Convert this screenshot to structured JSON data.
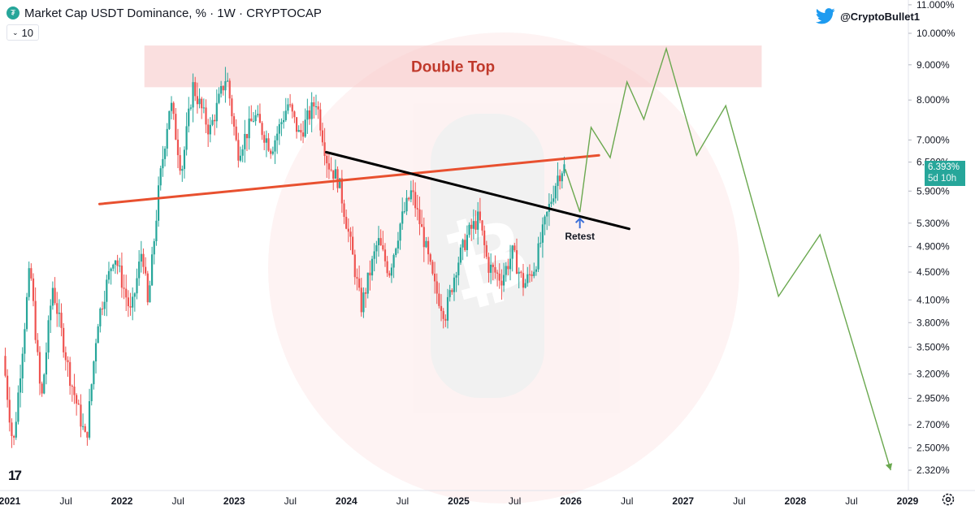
{
  "header": {
    "title": "Market Cap USDT Dominance, % · 1W · CRYPTOCAP",
    "interval_value": "10",
    "handle": "@CryptoBullet1",
    "tv_mark": "17"
  },
  "current_price": {
    "value": "6.393%",
    "countdown": "5d 10h"
  },
  "colors": {
    "up": "#26a69a",
    "down": "#ef5350",
    "resistance": "#e8502f",
    "trend": "#000000",
    "projection": "#6aa84f",
    "zone": "#f7c9c9",
    "retest_arrow": "#3b6fd8"
  },
  "annotations": {
    "double_top": "Double Top",
    "retest": "Retest"
  },
  "chart_data": {
    "type": "candlestick",
    "title": "Market Cap USDT Dominance, % · 1W · CRYPTOCAP",
    "y_scale": "log",
    "y_ticks": [
      2.32,
      2.5,
      2.7,
      2.95,
      3.2,
      3.5,
      3.8,
      4.1,
      4.5,
      4.9,
      5.3,
      5.9,
      6.5,
      7.0,
      8.0,
      9.0,
      10.0,
      11.0
    ],
    "y_tick_labels": [
      "2.320%",
      "2.500%",
      "2.700%",
      "2.950%",
      "3.200%",
      "3.500%",
      "3.800%",
      "4.100%",
      "4.500%",
      "4.900%",
      "5.300%",
      "5.900%",
      "6.500%",
      "7.000%",
      "8.000%",
      "9.000%",
      "10.000%",
      "11.000%"
    ],
    "x_ticks": [
      {
        "t": 2021.0,
        "label": "2021"
      },
      {
        "t": 2021.5,
        "label": "Jul"
      },
      {
        "t": 2022.0,
        "label": "2022"
      },
      {
        "t": 2022.5,
        "label": "Jul"
      },
      {
        "t": 2023.0,
        "label": "2023"
      },
      {
        "t": 2023.5,
        "label": "Jul"
      },
      {
        "t": 2024.0,
        "label": "2024"
      },
      {
        "t": 2024.5,
        "label": "Jul"
      },
      {
        "t": 2025.0,
        "label": "2025"
      },
      {
        "t": 2025.5,
        "label": "Jul"
      },
      {
        "t": 2026.0,
        "label": "2026"
      },
      {
        "t": 2026.5,
        "label": "Jul"
      },
      {
        "t": 2027.0,
        "label": "2027"
      },
      {
        "t": 2027.5,
        "label": "Jul"
      },
      {
        "t": 2028.0,
        "label": "2028"
      },
      {
        "t": 2028.5,
        "label": "Jul"
      },
      {
        "t": 2029.0,
        "label": "2029"
      }
    ],
    "price_path": [
      [
        2020.96,
        3.4
      ],
      [
        2021.05,
        2.5
      ],
      [
        2021.2,
        4.6
      ],
      [
        2021.3,
        2.9
      ],
      [
        2021.4,
        4.3
      ],
      [
        2021.55,
        3.2
      ],
      [
        2021.7,
        2.55
      ],
      [
        2021.8,
        3.8
      ],
      [
        2021.95,
        4.8
      ],
      [
        2022.1,
        3.9
      ],
      [
        2022.2,
        4.9
      ],
      [
        2022.25,
        4.0
      ],
      [
        2022.35,
        6.0
      ],
      [
        2022.45,
        8.0
      ],
      [
        2022.55,
        6.3
      ],
      [
        2022.65,
        8.4
      ],
      [
        2022.8,
        7.2
      ],
      [
        2022.95,
        8.7
      ],
      [
        2023.05,
        6.7
      ],
      [
        2023.2,
        7.6
      ],
      [
        2023.35,
        6.8
      ],
      [
        2023.5,
        7.9
      ],
      [
        2023.6,
        7.1
      ],
      [
        2023.75,
        8.0
      ],
      [
        2023.85,
        6.5
      ],
      [
        2023.95,
        6.1
      ],
      [
        2024.05,
        5.0
      ],
      [
        2024.15,
        4.0
      ],
      [
        2024.3,
        5.0
      ],
      [
        2024.4,
        4.5
      ],
      [
        2024.5,
        5.3
      ],
      [
        2024.6,
        5.9
      ],
      [
        2024.7,
        5.1
      ],
      [
        2024.8,
        4.3
      ],
      [
        2024.9,
        3.9
      ],
      [
        2025.0,
        4.6
      ],
      [
        2025.1,
        5.1
      ],
      [
        2025.2,
        5.4
      ],
      [
        2025.28,
        4.6
      ],
      [
        2025.4,
        4.4
      ],
      [
        2025.5,
        4.8
      ],
      [
        2025.6,
        4.3
      ],
      [
        2025.7,
        4.6
      ],
      [
        2025.8,
        5.4
      ],
      [
        2025.9,
        6.2
      ],
      [
        2025.95,
        6.393
      ]
    ],
    "resistance_line": [
      [
        2021.8,
        5.65
      ],
      [
        2026.25,
        6.65
      ]
    ],
    "trend_line": [
      [
        2023.82,
        6.72
      ],
      [
        2026.52,
        5.2
      ]
    ],
    "double_top_zone": {
      "t_start": 2022.2,
      "t_end": 2027.7,
      "high": 9.6,
      "low": 8.35
    },
    "retest_point": [
      2026.08,
      5.47
    ],
    "projection": [
      [
        2025.95,
        6.35
      ],
      [
        2026.08,
        5.5
      ],
      [
        2026.18,
        7.3
      ],
      [
        2026.35,
        6.6
      ],
      [
        2026.5,
        8.5
      ],
      [
        2026.65,
        7.5
      ],
      [
        2026.85,
        9.5
      ],
      [
        2027.12,
        6.65
      ],
      [
        2027.38,
        7.85
      ],
      [
        2027.85,
        4.15
      ],
      [
        2028.22,
        5.1
      ],
      [
        2028.85,
        2.32
      ]
    ]
  }
}
